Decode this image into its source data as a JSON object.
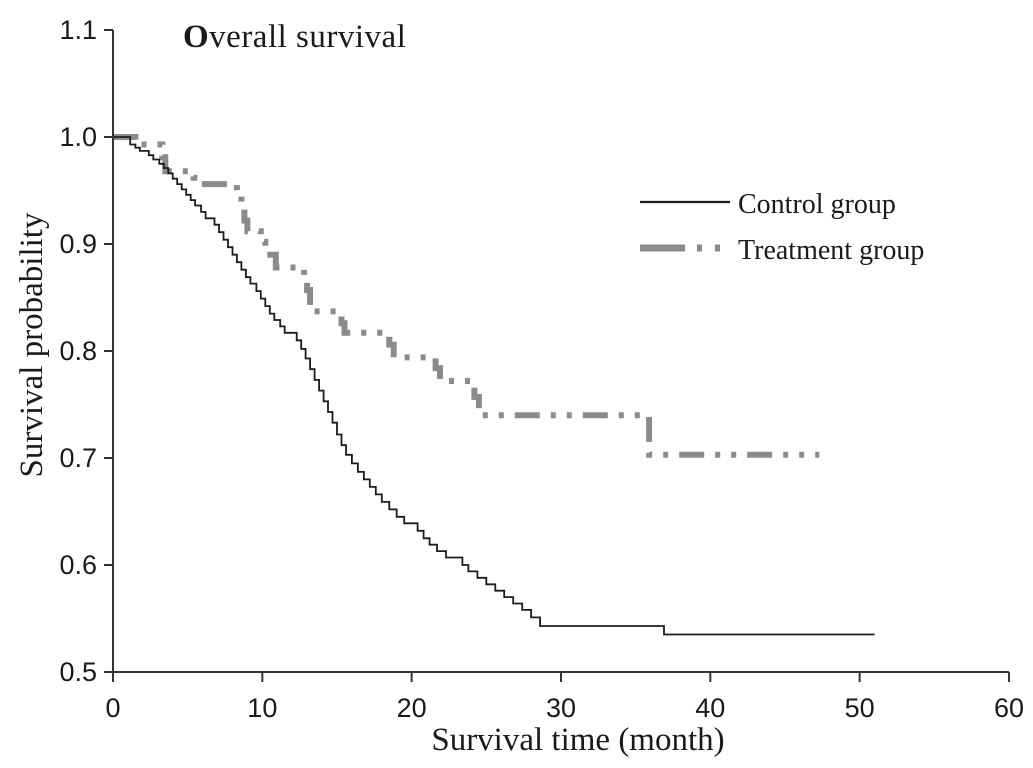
{
  "figure": {
    "background": "#ffffff",
    "axis_color": "#333333",
    "text_color": "#1a1a1a"
  },
  "chart_data": {
    "type": "line",
    "subtype": "kaplan_meier_step",
    "title": "Overall survival",
    "title_parts": {
      "lead": "O",
      "rest": "verall survival"
    },
    "xlabel": "Survival time (month)",
    "ylabel": "Survival probability",
    "xlim": [
      0,
      60
    ],
    "ylim": [
      0.5,
      1.1
    ],
    "xticks": [
      0,
      10,
      20,
      30,
      40,
      50,
      60
    ],
    "yticks": [
      "1.1",
      "1.0",
      "0.9",
      "0.8",
      "0.7",
      "0.6",
      "0.5"
    ],
    "grid": false,
    "legend": {
      "position": "upper_right",
      "entries": [
        {
          "label": "Control group",
          "style": "solid",
          "color": "#1c1c1c"
        },
        {
          "label": "Treatment group",
          "style": "dash-dot-dot",
          "color": "#8b8b8b"
        }
      ]
    },
    "series": [
      {
        "name": "Control group",
        "color": "#1c1c1c",
        "line_style": "solid",
        "line_width": 1.8,
        "points": [
          [
            0,
            1.0
          ],
          [
            1.15,
            0.993
          ],
          [
            1.5,
            0.99
          ],
          [
            1.8,
            0.987
          ],
          [
            2.4,
            0.983
          ],
          [
            2.7,
            0.979
          ],
          [
            3.1,
            0.975
          ],
          [
            3.4,
            0.971
          ],
          [
            3.7,
            0.966
          ],
          [
            4.0,
            0.961
          ],
          [
            4.3,
            0.956
          ],
          [
            4.6,
            0.951
          ],
          [
            4.9,
            0.946
          ],
          [
            5.2,
            0.941
          ],
          [
            5.5,
            0.936
          ],
          [
            5.9,
            0.93
          ],
          [
            6.2,
            0.924
          ],
          [
            6.8,
            0.918
          ],
          [
            7.1,
            0.911
          ],
          [
            7.4,
            0.904
          ],
          [
            7.7,
            0.897
          ],
          [
            8.0,
            0.89
          ],
          [
            8.3,
            0.883
          ],
          [
            8.6,
            0.876
          ],
          [
            8.9,
            0.869
          ],
          [
            9.2,
            0.863
          ],
          [
            9.6,
            0.856
          ],
          [
            9.9,
            0.849
          ],
          [
            10.2,
            0.842
          ],
          [
            10.5,
            0.835
          ],
          [
            10.8,
            0.829
          ],
          [
            11.2,
            0.823
          ],
          [
            11.5,
            0.817
          ],
          [
            12.3,
            0.81
          ],
          [
            12.6,
            0.802
          ],
          [
            12.9,
            0.793
          ],
          [
            13.2,
            0.783
          ],
          [
            13.5,
            0.773
          ],
          [
            13.8,
            0.763
          ],
          [
            14.1,
            0.753
          ],
          [
            14.4,
            0.743
          ],
          [
            14.7,
            0.733
          ],
          [
            15.0,
            0.722
          ],
          [
            15.3,
            0.712
          ],
          [
            15.6,
            0.703
          ],
          [
            16.0,
            0.695
          ],
          [
            16.4,
            0.687
          ],
          [
            16.8,
            0.68
          ],
          [
            17.2,
            0.673
          ],
          [
            17.6,
            0.666
          ],
          [
            18.0,
            0.659
          ],
          [
            18.5,
            0.652
          ],
          [
            19.0,
            0.645
          ],
          [
            19.5,
            0.639
          ],
          [
            20.4,
            0.632
          ],
          [
            20.8,
            0.625
          ],
          [
            21.2,
            0.619
          ],
          [
            21.7,
            0.613
          ],
          [
            22.3,
            0.607
          ],
          [
            23.4,
            0.6
          ],
          [
            23.8,
            0.594
          ],
          [
            24.4,
            0.588
          ],
          [
            25.0,
            0.582
          ],
          [
            25.6,
            0.576
          ],
          [
            26.2,
            0.57
          ],
          [
            26.8,
            0.564
          ],
          [
            27.4,
            0.558
          ],
          [
            28.0,
            0.551
          ],
          [
            28.6,
            0.543
          ],
          [
            36.9,
            0.535
          ],
          [
            51.0,
            0.535
          ]
        ]
      },
      {
        "name": "Treatment group",
        "color": "#8b8b8b",
        "line_style": "dash-dot-dot",
        "line_width": 6,
        "points": [
          [
            0,
            1.0
          ],
          [
            1.5,
            0.993
          ],
          [
            3.3,
            0.981
          ],
          [
            3.5,
            0.968
          ],
          [
            5.4,
            0.962
          ],
          [
            5.7,
            0.956
          ],
          [
            8.3,
            0.948
          ],
          [
            8.6,
            0.935
          ],
          [
            8.8,
            0.922
          ],
          [
            9.0,
            0.912
          ],
          [
            9.9,
            0.902
          ],
          [
            10.2,
            0.89
          ],
          [
            10.9,
            0.878
          ],
          [
            12.8,
            0.868
          ],
          [
            13.0,
            0.857
          ],
          [
            13.2,
            0.837
          ],
          [
            15.3,
            0.826
          ],
          [
            15.5,
            0.817
          ],
          [
            18.5,
            0.806
          ],
          [
            18.8,
            0.794
          ],
          [
            21.6,
            0.784
          ],
          [
            21.9,
            0.772
          ],
          [
            24.2,
            0.757
          ],
          [
            24.5,
            0.74
          ],
          [
            35.9,
            0.703
          ],
          [
            47.3,
            0.703
          ]
        ]
      }
    ]
  }
}
